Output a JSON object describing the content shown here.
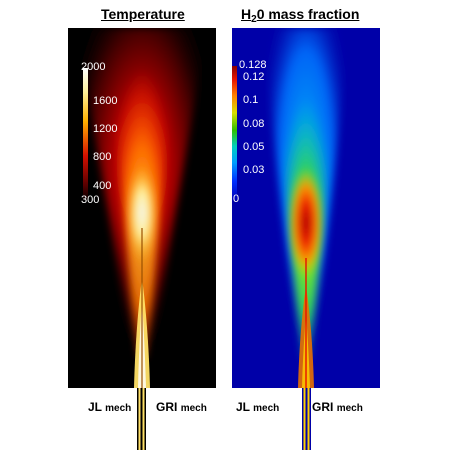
{
  "panels": {
    "temperature": {
      "title": "Temperature",
      "colorbar": {
        "ticks": [
          "2000",
          "1600",
          "1200",
          "800",
          "400",
          "300"
        ]
      }
    },
    "h2o": {
      "title_main": "H",
      "title_sub": "2",
      "title_rest": "0 mass fraction",
      "colorbar": {
        "ticks": [
          "0.128",
          "0.12",
          "0.1",
          "0.08",
          "0.05",
          "0.03",
          "0"
        ]
      }
    }
  },
  "labels": {
    "jl": "JL",
    "gri": "GRI",
    "mech": "mech"
  },
  "colors": {
    "temperature_background": "#000000",
    "h2o_background": "#0000a8"
  }
}
